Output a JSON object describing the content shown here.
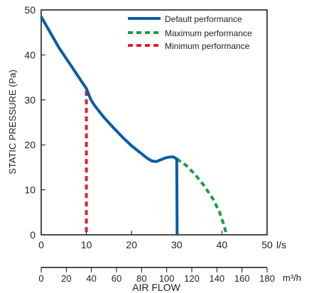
{
  "chart_data": {
    "type": "line",
    "title": "",
    "ylabel": "STATIC PRESSURE (Pa)",
    "xlabel": "AIR FLOW",
    "x_unit": "l/s",
    "x2_unit": "m³/h",
    "xlim": [
      0,
      50
    ],
    "ylim": [
      0,
      50
    ],
    "x_ticks": [
      "0",
      "10",
      "20",
      "30",
      "40",
      "50"
    ],
    "y_ticks": [
      "0",
      "10",
      "20",
      "30",
      "40",
      "50"
    ],
    "x2_lim": [
      0,
      180
    ],
    "x2_ticks": [
      "0",
      "20",
      "40",
      "60",
      "80",
      "100",
      "120",
      "140",
      "160",
      "180"
    ],
    "grid": false,
    "legend_position": "top-right",
    "series": [
      {
        "name": "Default performance",
        "color": "#0a5ca8",
        "style": "solid",
        "points": [
          [
            0,
            48.5
          ],
          [
            2,
            45
          ],
          [
            4,
            41.5
          ],
          [
            6,
            38.5
          ],
          [
            8,
            35.5
          ],
          [
            10,
            32.5
          ],
          [
            11,
            30
          ],
          [
            12,
            28.5
          ],
          [
            14,
            26
          ],
          [
            16,
            23.8
          ],
          [
            18,
            21.7
          ],
          [
            20,
            19.8
          ],
          [
            22,
            18.2
          ],
          [
            23.5,
            17
          ],
          [
            24.5,
            16.4
          ],
          [
            25.5,
            16.3
          ],
          [
            26.5,
            16.7
          ],
          [
            27.5,
            17.1
          ],
          [
            28.5,
            17.3
          ],
          [
            29.3,
            17.3
          ],
          [
            30,
            16.9
          ],
          [
            30.1,
            0
          ]
        ]
      },
      {
        "name": "Maximum performance",
        "color": "#1a9c45",
        "style": "dashed",
        "points": [
          [
            30,
            16.9
          ],
          [
            32,
            15.5
          ],
          [
            34,
            13.5
          ],
          [
            36,
            11
          ],
          [
            38,
            8
          ],
          [
            39.5,
            5
          ],
          [
            40.5,
            2
          ],
          [
            41,
            0
          ]
        ]
      },
      {
        "name": "Minimum performance",
        "color": "#e0202e",
        "style": "dashed",
        "points": [
          [
            10,
            32
          ],
          [
            10,
            0
          ]
        ]
      }
    ]
  }
}
